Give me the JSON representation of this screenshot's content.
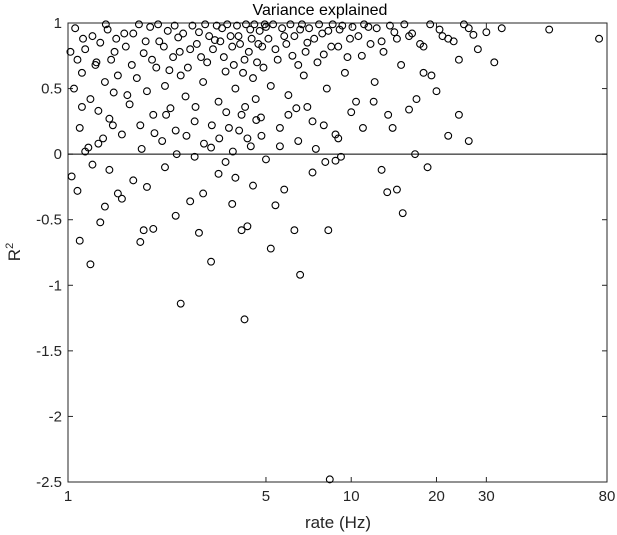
{
  "chart_data": {
    "type": "scatter",
    "title": "Variance explained",
    "xlabel": "rate (Hz)",
    "ylabel_base": "R",
    "ylabel_sup": "2",
    "x_scale": "log",
    "xlim": [
      1,
      80
    ],
    "ylim": [
      -2.5,
      1
    ],
    "x_ticks": [
      1,
      5,
      10,
      20,
      30,
      80
    ],
    "y_ticks": [
      1,
      0.5,
      0,
      -0.5,
      -1,
      -1.5,
      -2,
      -2.5
    ],
    "reference_line_y": 0,
    "grid": false,
    "marker": "open-circle",
    "points": [
      [
        1.02,
        0.78
      ],
      [
        1.05,
        0.5
      ],
      [
        1.08,
        0.72
      ],
      [
        1.1,
        0.2
      ],
      [
        1.12,
        0.62
      ],
      [
        1.15,
        0.8
      ],
      [
        1.18,
        0.05
      ],
      [
        1.2,
        0.42
      ],
      [
        1.22,
        0.9
      ],
      [
        1.25,
        0.68
      ],
      [
        1.28,
        0.33
      ],
      [
        1.3,
        0.85
      ],
      [
        1.33,
        0.12
      ],
      [
        1.35,
        0.55
      ],
      [
        1.38,
        0.95
      ],
      [
        1.4,
        0.27
      ],
      [
        1.42,
        0.72
      ],
      [
        1.45,
        0.47
      ],
      [
        1.48,
        0.88
      ],
      [
        1.5,
        0.6
      ],
      [
        1.55,
        0.15
      ],
      [
        1.6,
        0.82
      ],
      [
        1.65,
        0.38
      ],
      [
        1.7,
        0.92
      ],
      [
        1.75,
        0.58
      ],
      [
        1.8,
        0.22
      ],
      [
        1.85,
        0.77
      ],
      [
        1.9,
        0.48
      ],
      [
        1.95,
        0.97
      ],
      [
        2.0,
        0.3
      ],
      [
        2.05,
        0.66
      ],
      [
        2.1,
        0.86
      ],
      [
        2.15,
        0.1
      ],
      [
        2.2,
        0.52
      ],
      [
        2.25,
        0.94
      ],
      [
        2.3,
        0.35
      ],
      [
        2.35,
        0.74
      ],
      [
        2.4,
        0.18
      ],
      [
        2.45,
        0.89
      ],
      [
        2.5,
        0.6
      ],
      [
        2.6,
        0.44
      ],
      [
        2.7,
        0.8
      ],
      [
        2.8,
        0.25
      ],
      [
        2.9,
        0.93
      ],
      [
        3.0,
        0.55
      ],
      [
        3.1,
        0.7
      ],
      [
        3.2,
        0.05
      ],
      [
        3.3,
        0.87
      ],
      [
        3.4,
        0.4
      ],
      [
        3.5,
        0.96
      ],
      [
        3.6,
        0.63
      ],
      [
        3.7,
        0.2
      ],
      [
        3.8,
        0.82
      ],
      [
        3.9,
        0.5
      ],
      [
        4.0,
        0.9
      ],
      [
        4.1,
        0.3
      ],
      [
        4.2,
        0.72
      ],
      [
        4.3,
        0.12
      ],
      [
        4.4,
        0.95
      ],
      [
        4.5,
        0.58
      ],
      [
        4.6,
        0.42
      ],
      [
        4.7,
        0.84
      ],
      [
        4.8,
        0.28
      ],
      [
        4.9,
        0.66
      ],
      [
        5.0,
        0.97
      ],
      [
        5.2,
        0.52
      ],
      [
        5.4,
        0.8
      ],
      [
        5.6,
        0.2
      ],
      [
        5.8,
        0.9
      ],
      [
        6.0,
        0.45
      ],
      [
        6.2,
        0.75
      ],
      [
        6.4,
        0.35
      ],
      [
        6.6,
        0.95
      ],
      [
        6.8,
        0.6
      ],
      [
        7.0,
        0.85
      ],
      [
        7.3,
        0.25
      ],
      [
        7.6,
        0.7
      ],
      [
        7.9,
        0.92
      ],
      [
        8.2,
        0.5
      ],
      [
        8.5,
        0.82
      ],
      [
        8.8,
        0.15
      ],
      [
        9.1,
        0.95
      ],
      [
        9.5,
        0.62
      ],
      [
        9.9,
        0.88
      ],
      [
        10.4,
        0.4
      ],
      [
        10.9,
        0.75
      ],
      [
        11.5,
        0.97
      ],
      [
        12.1,
        0.55
      ],
      [
        12.8,
        0.86
      ],
      [
        13.5,
        0.3
      ],
      [
        14.2,
        0.93
      ],
      [
        15.0,
        0.68
      ],
      [
        16.0,
        0.9
      ],
      [
        17.0,
        0.42
      ],
      [
        18.0,
        0.82
      ],
      [
        19.2,
        0.6
      ],
      [
        20.5,
        0.95
      ],
      [
        22.0,
        0.88
      ],
      [
        24.0,
        0.72
      ],
      [
        26.0,
        0.96
      ],
      [
        28.0,
        0.8
      ],
      [
        30.0,
        0.93
      ],
      [
        32.0,
        0.7
      ],
      [
        34.0,
        0.96
      ],
      [
        50.0,
        0.95
      ],
      [
        75.0,
        0.88
      ],
      [
        1.03,
        -0.17
      ],
      [
        1.08,
        -0.28
      ],
      [
        1.1,
        -0.66
      ],
      [
        1.15,
        0.02
      ],
      [
        1.2,
        -0.84
      ],
      [
        1.22,
        -0.08
      ],
      [
        1.3,
        -0.52
      ],
      [
        1.35,
        -0.4
      ],
      [
        1.4,
        -0.12
      ],
      [
        1.5,
        -0.3
      ],
      [
        1.55,
        -0.34
      ],
      [
        1.7,
        -0.2
      ],
      [
        1.8,
        -0.67
      ],
      [
        1.85,
        -0.58
      ],
      [
        1.9,
        -0.25
      ],
      [
        2.0,
        -0.57
      ],
      [
        2.2,
        -0.1
      ],
      [
        2.4,
        -0.47
      ],
      [
        2.5,
        -1.14
      ],
      [
        2.7,
        -0.36
      ],
      [
        2.8,
        -0.02
      ],
      [
        2.9,
        -0.6
      ],
      [
        3.0,
        -0.3
      ],
      [
        3.2,
        -0.82
      ],
      [
        3.4,
        -0.15
      ],
      [
        3.6,
        -0.06
      ],
      [
        3.8,
        -0.38
      ],
      [
        3.9,
        -0.18
      ],
      [
        4.1,
        -0.58
      ],
      [
        4.2,
        -1.26
      ],
      [
        4.3,
        -0.55
      ],
      [
        4.5,
        -0.24
      ],
      [
        5.0,
        -0.04
      ],
      [
        5.2,
        -0.72
      ],
      [
        5.4,
        -0.39
      ],
      [
        5.8,
        -0.27
      ],
      [
        6.3,
        -0.58
      ],
      [
        6.6,
        -0.92
      ],
      [
        7.3,
        -0.14
      ],
      [
        8.1,
        -0.06
      ],
      [
        8.3,
        -0.58
      ],
      [
        8.4,
        -2.48
      ],
      [
        8.8,
        -0.05
      ],
      [
        9.2,
        -0.02
      ],
      [
        12.8,
        -0.12
      ],
      [
        13.4,
        -0.29
      ],
      [
        14.5,
        -0.27
      ],
      [
        15.2,
        -0.45
      ],
      [
        16.8,
        0.0
      ],
      [
        18.6,
        -0.1
      ],
      [
        1.06,
        0.96
      ],
      [
        1.13,
        0.88
      ],
      [
        1.26,
        0.7
      ],
      [
        1.36,
        0.99
      ],
      [
        1.46,
        0.78
      ],
      [
        1.58,
        0.92
      ],
      [
        1.68,
        0.68
      ],
      [
        1.78,
        0.99
      ],
      [
        1.88,
        0.86
      ],
      [
        1.98,
        0.72
      ],
      [
        2.08,
        0.99
      ],
      [
        2.18,
        0.82
      ],
      [
        2.28,
        0.64
      ],
      [
        2.38,
        0.98
      ],
      [
        2.48,
        0.78
      ],
      [
        2.55,
        0.92
      ],
      [
        2.65,
        0.66
      ],
      [
        2.75,
        0.98
      ],
      [
        2.85,
        0.84
      ],
      [
        2.95,
        0.74
      ],
      [
        3.05,
        0.99
      ],
      [
        3.15,
        0.9
      ],
      [
        3.25,
        0.8
      ],
      [
        3.35,
        0.98
      ],
      [
        3.45,
        0.86
      ],
      [
        3.55,
        0.74
      ],
      [
        3.65,
        0.99
      ],
      [
        3.75,
        0.9
      ],
      [
        3.85,
        0.68
      ],
      [
        3.95,
        0.98
      ],
      [
        4.05,
        0.84
      ],
      [
        4.15,
        0.62
      ],
      [
        4.25,
        0.99
      ],
      [
        4.35,
        0.78
      ],
      [
        4.45,
        0.88
      ],
      [
        4.55,
        0.99
      ],
      [
        4.65,
        0.7
      ],
      [
        4.75,
        0.94
      ],
      [
        4.85,
        0.82
      ],
      [
        4.95,
        0.99
      ],
      [
        5.1,
        0.88
      ],
      [
        5.3,
        0.99
      ],
      [
        5.5,
        0.72
      ],
      [
        5.7,
        0.96
      ],
      [
        5.9,
        0.84
      ],
      [
        6.1,
        0.99
      ],
      [
        6.3,
        0.9
      ],
      [
        6.5,
        0.68
      ],
      [
        6.7,
        0.99
      ],
      [
        6.9,
        0.78
      ],
      [
        7.1,
        0.96
      ],
      [
        7.4,
        0.88
      ],
      [
        7.7,
        0.99
      ],
      [
        8.0,
        0.76
      ],
      [
        8.3,
        0.94
      ],
      [
        8.6,
        0.99
      ],
      [
        9.0,
        0.82
      ],
      [
        9.3,
        0.98
      ],
      [
        9.7,
        0.74
      ],
      [
        10.1,
        0.97
      ],
      [
        10.6,
        0.9
      ],
      [
        11.1,
        0.99
      ],
      [
        11.7,
        0.84
      ],
      [
        12.3,
        0.96
      ],
      [
        13.0,
        0.78
      ],
      [
        13.7,
        0.98
      ],
      [
        14.5,
        0.88
      ],
      [
        15.4,
        0.99
      ],
      [
        16.4,
        0.92
      ],
      [
        17.5,
        0.84
      ],
      [
        19.0,
        0.99
      ],
      [
        21.0,
        0.9
      ],
      [
        23.0,
        0.86
      ],
      [
        25.0,
        0.99
      ],
      [
        27.0,
        0.91
      ],
      [
        1.12,
        0.36
      ],
      [
        1.28,
        0.08
      ],
      [
        1.44,
        0.22
      ],
      [
        1.62,
        0.45
      ],
      [
        1.82,
        0.04
      ],
      [
        2.02,
        0.16
      ],
      [
        2.22,
        0.3
      ],
      [
        2.42,
        0.0
      ],
      [
        2.62,
        0.14
      ],
      [
        2.82,
        0.36
      ],
      [
        3.02,
        0.08
      ],
      [
        3.22,
        0.22
      ],
      [
        3.42,
        0.12
      ],
      [
        3.62,
        0.32
      ],
      [
        3.82,
        0.02
      ],
      [
        4.02,
        0.18
      ],
      [
        4.22,
        0.36
      ],
      [
        4.42,
        0.06
      ],
      [
        4.62,
        0.26
      ],
      [
        4.82,
        0.14
      ],
      [
        5.6,
        0.06
      ],
      [
        6.0,
        0.3
      ],
      [
        6.5,
        0.1
      ],
      [
        7.0,
        0.36
      ],
      [
        7.5,
        0.04
      ],
      [
        8.0,
        0.22
      ],
      [
        9.0,
        0.12
      ],
      [
        10.0,
        0.32
      ],
      [
        11.0,
        0.2
      ],
      [
        12.0,
        0.4
      ],
      [
        14.0,
        0.2
      ],
      [
        16.0,
        0.34
      ],
      [
        18.0,
        0.62
      ],
      [
        20.0,
        0.48
      ],
      [
        22.0,
        0.14
      ],
      [
        24.0,
        0.3
      ],
      [
        26.0,
        0.1
      ]
    ]
  }
}
